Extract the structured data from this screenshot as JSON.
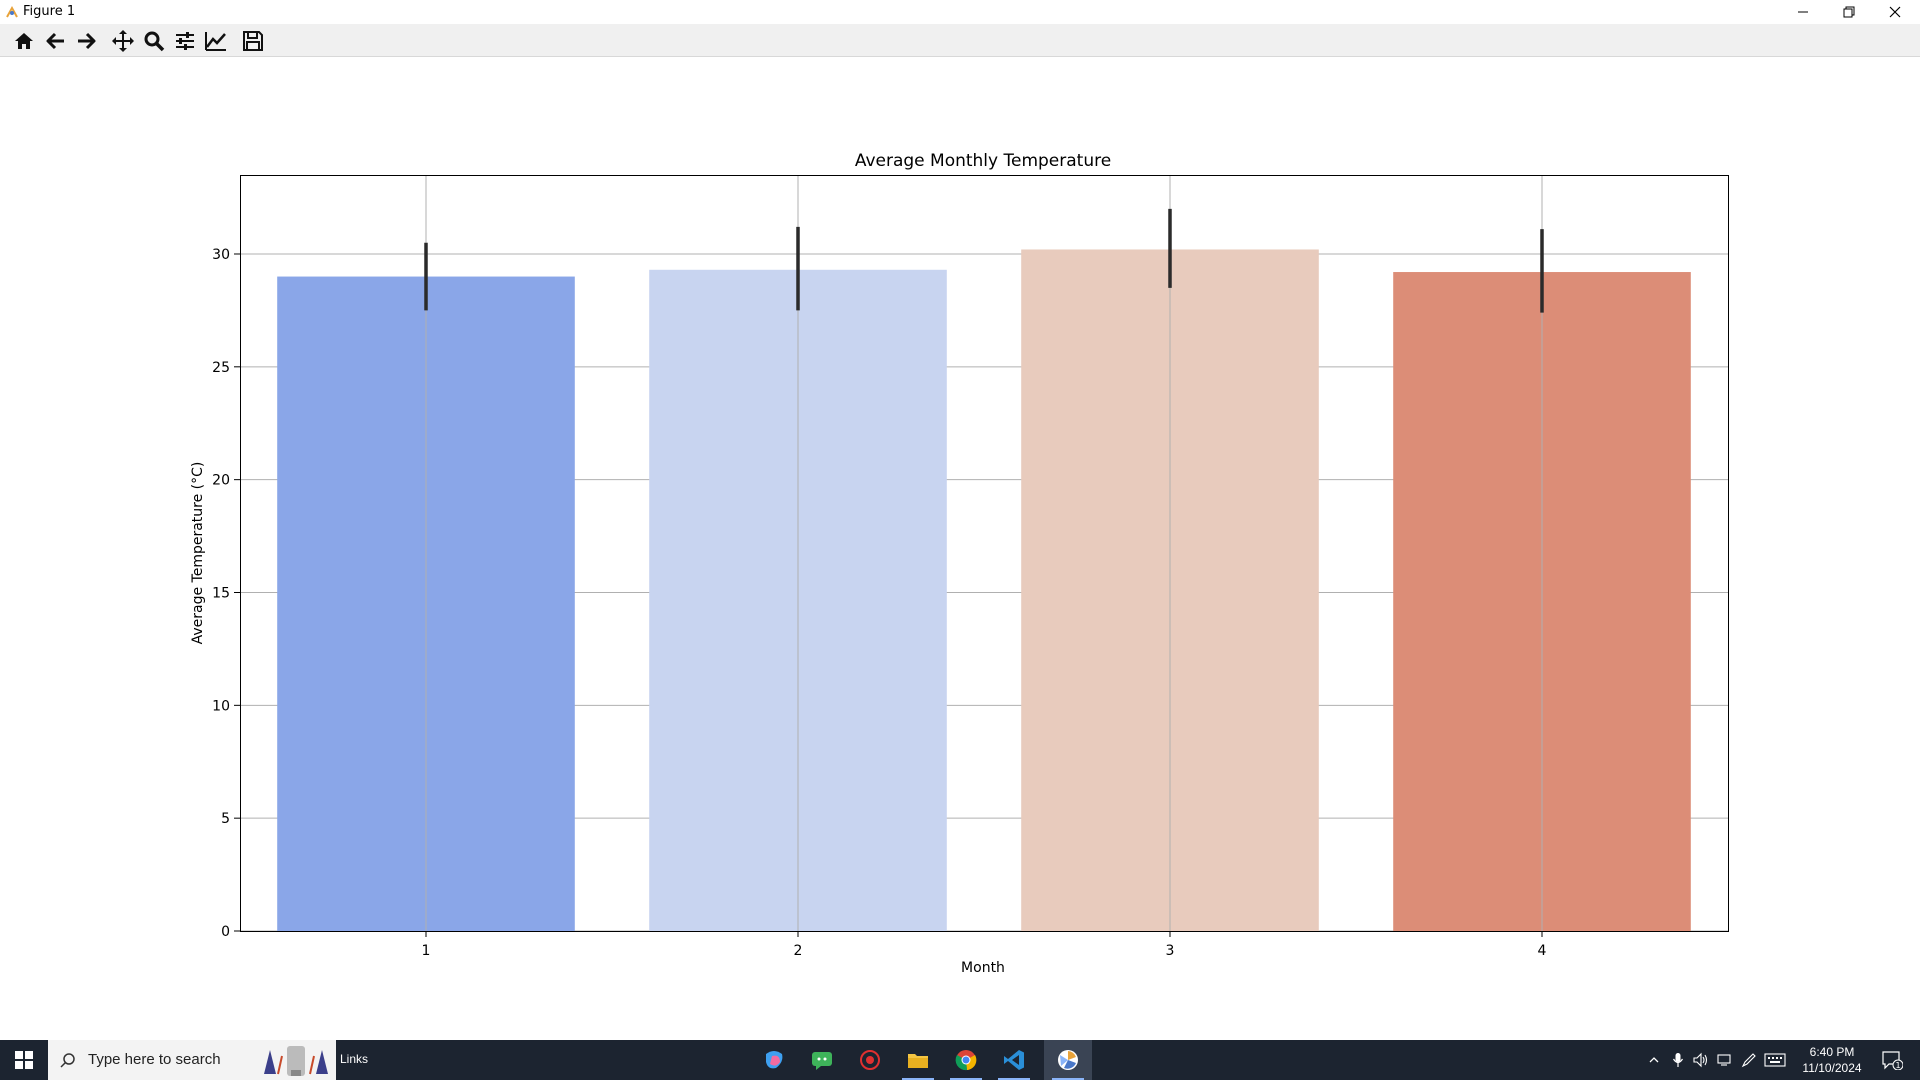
{
  "window": {
    "title": "Figure 1"
  },
  "toolbar": {
    "buttons": [
      {
        "name": "home-button",
        "icon": "home-icon"
      },
      {
        "name": "back-button",
        "icon": "arrow-left-icon"
      },
      {
        "name": "forward-button",
        "icon": "arrow-right-icon"
      },
      {
        "name": "pan-button",
        "icon": "move-icon"
      },
      {
        "name": "zoom-button",
        "icon": "search-icon"
      },
      {
        "name": "configure-subplots-button",
        "icon": "sliders-icon"
      },
      {
        "name": "edit-axis-button",
        "icon": "line-chart-icon"
      },
      {
        "name": "save-button",
        "icon": "save-icon"
      }
    ]
  },
  "chart_data": {
    "type": "bar",
    "title": "Average Monthly Temperature",
    "xlabel": "Month",
    "ylabel": "Average Temperature (°C)",
    "categories": [
      "1",
      "2",
      "3",
      "4"
    ],
    "values": [
      29.0,
      29.3,
      30.2,
      29.2
    ],
    "errors_low": [
      27.5,
      27.5,
      28.5,
      27.4
    ],
    "errors_high": [
      30.5,
      31.2,
      32.0,
      31.1
    ],
    "colors": [
      "#8aa6e8",
      "#c8d4f0",
      "#e8cbbd",
      "#dc8d77"
    ],
    "ylim": [
      0,
      33.5
    ],
    "yticks": [
      0,
      5,
      10,
      15,
      20,
      25,
      30
    ],
    "grid": true
  },
  "taskbar": {
    "search_placeholder": "Type here to search",
    "links_label": "Links",
    "time": "6:40 PM",
    "date": "11/10/2024",
    "notification_count": "1"
  }
}
